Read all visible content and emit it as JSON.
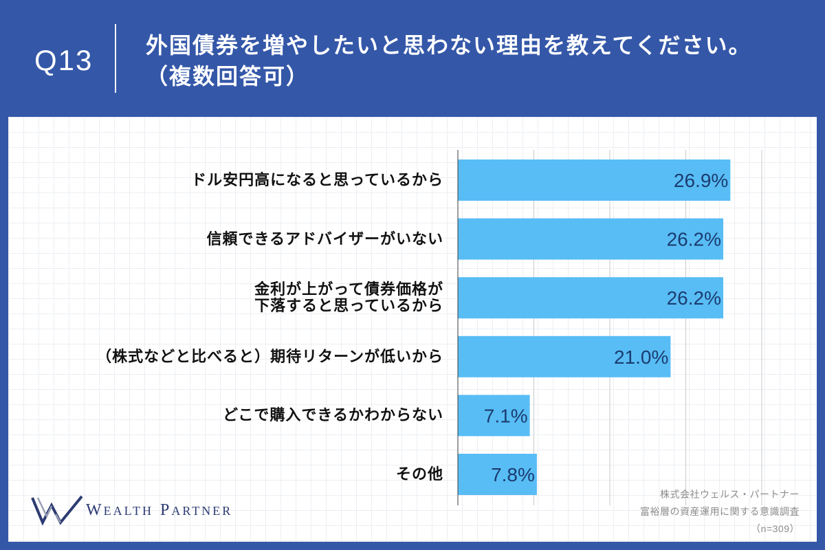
{
  "colors": {
    "frame": "#3457a8",
    "panel": "#ffffff",
    "title_text": "#ffffff",
    "label_text": "#111111",
    "note_text": "#8c8c8c",
    "logo": "#2c3b72",
    "logo_accent": "#9aa0b4",
    "gridline": "#c9c9c9",
    "axis": "#3a3a3a"
  },
  "header": {
    "question_number": "Q13",
    "title_line1": "外国債券を増やしたいと思わない理由を教えてください。",
    "title_line2": "（複数回答可）"
  },
  "chart_data": {
    "type": "bar",
    "orientation": "horizontal",
    "categories": [
      "ドル安円高になると思っているから",
      "信頼できるアドバイザーがいない",
      "金利が上がって債券価格が\n下落すると思っているから",
      "（株式などと比べると）期待リターンが低いから",
      "どこで購入できるかわからない",
      "その他"
    ],
    "values": [
      26.9,
      26.2,
      26.2,
      21.0,
      7.1,
      7.8
    ],
    "data_labels": [
      "26.9%",
      "26.2%",
      "26.2%",
      "21.0%",
      "7.1%",
      "7.8%"
    ],
    "xlim": [
      0,
      30
    ],
    "grid": true,
    "legend": "none",
    "bar_color": "#58bdf5",
    "data_label_color": "#1b3c70"
  },
  "logo": {
    "mark_icon": "w-logo-icon",
    "word1": "WEALTH",
    "word2": "PARTNER"
  },
  "source_note": {
    "company": "株式会社ウェルス・パートナー",
    "survey": "富裕層の資産運用に関する意識調査",
    "sample": "（n=309）"
  }
}
